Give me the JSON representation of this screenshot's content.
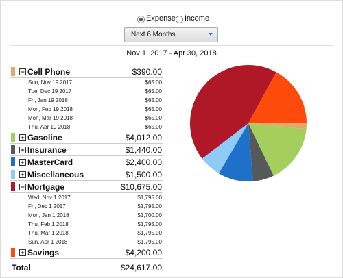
{
  "radios": [
    {
      "label": "Expense",
      "checked": true
    },
    {
      "label": "Income",
      "checked": false
    }
  ],
  "dropdown": "Next 6 Months",
  "date_range": "Nov 1, 2017 - Apr 30, 2018",
  "categories": [
    {
      "name": "Cell Phone",
      "color": "#e3a86c",
      "value": 390,
      "label": "$390.00",
      "expanded": true,
      "items": [
        {
          "date": "Sun, Nov 19 2017",
          "amount": "$65.00"
        },
        {
          "date": "Tue, Dec 19 2017",
          "amount": "$65.00"
        },
        {
          "date": "Fri, Jan 19 2018",
          "amount": "$65.00"
        },
        {
          "date": "Mon, Feb 19 2018",
          "amount": "$65.00"
        },
        {
          "date": "Mon, Mar 19 2018",
          "amount": "$65.00"
        },
        {
          "date": "Thu, Apr 19 2018",
          "amount": "$65.00"
        }
      ]
    },
    {
      "name": "Gasoline",
      "color": "#a5cf5c",
      "value": 4012,
      "label": "$4,012.00",
      "expanded": false,
      "items": []
    },
    {
      "name": "Insurance",
      "color": "#57585a",
      "value": 1440,
      "label": "$1,440.00",
      "expanded": false,
      "items": []
    },
    {
      "name": "MasterCard",
      "color": "#1f70c8",
      "value": 2400,
      "label": "$2,400.00",
      "expanded": false,
      "items": []
    },
    {
      "name": "Miscellaneous",
      "color": "#8ecbf6",
      "value": 1500,
      "label": "$1,500.00",
      "expanded": false,
      "items": []
    },
    {
      "name": "Mortgage",
      "color": "#b01828",
      "value": 10675,
      "label": "$10,675.00",
      "expanded": true,
      "items": [
        {
          "date": "Wed, Nov 1 2017",
          "amount": "$1,795.00"
        },
        {
          "date": "Fri, Dec 1 2017",
          "amount": "$1,795.00"
        },
        {
          "date": "Mon, Jan 1 2018",
          "amount": "$1,700.00"
        },
        {
          "date": "Thu, Feb 1 2018",
          "amount": "$1,795.00"
        },
        {
          "date": "Thu, Mar 1 2018",
          "amount": "$1,795.00"
        },
        {
          "date": "Sun, Apr 1 2018",
          "amount": "$1,795.00"
        }
      ]
    },
    {
      "name": "Savings",
      "color": "#fe4a0b",
      "value": 4200,
      "label": "$4,200.00",
      "expanded": false,
      "items": []
    }
  ],
  "total": {
    "label": "Total",
    "amount": "$24,617.00"
  }
}
